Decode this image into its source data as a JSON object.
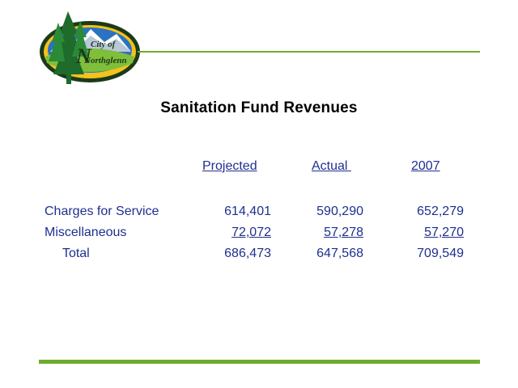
{
  "logo": {
    "line1": "City of",
    "line2": "Northglenn",
    "initial": "N"
  },
  "title": "Sanitation Fund Revenues",
  "columns": [
    "Projected",
    "Actual ",
    "2007"
  ],
  "rows": [
    {
      "label": "Charges for Service",
      "values": [
        "614,401",
        "590,290",
        "652,279"
      ]
    },
    {
      "label": "Miscellaneous",
      "values": [
        "72,072",
        "57,278",
        "57,270"
      ]
    },
    {
      "label": "     Total",
      "values": [
        "686,473",
        "647,568",
        "709,549"
      ]
    }
  ],
  "colors": {
    "accent_green": "#6fac2e",
    "text_blue": "#1f2f8f"
  }
}
